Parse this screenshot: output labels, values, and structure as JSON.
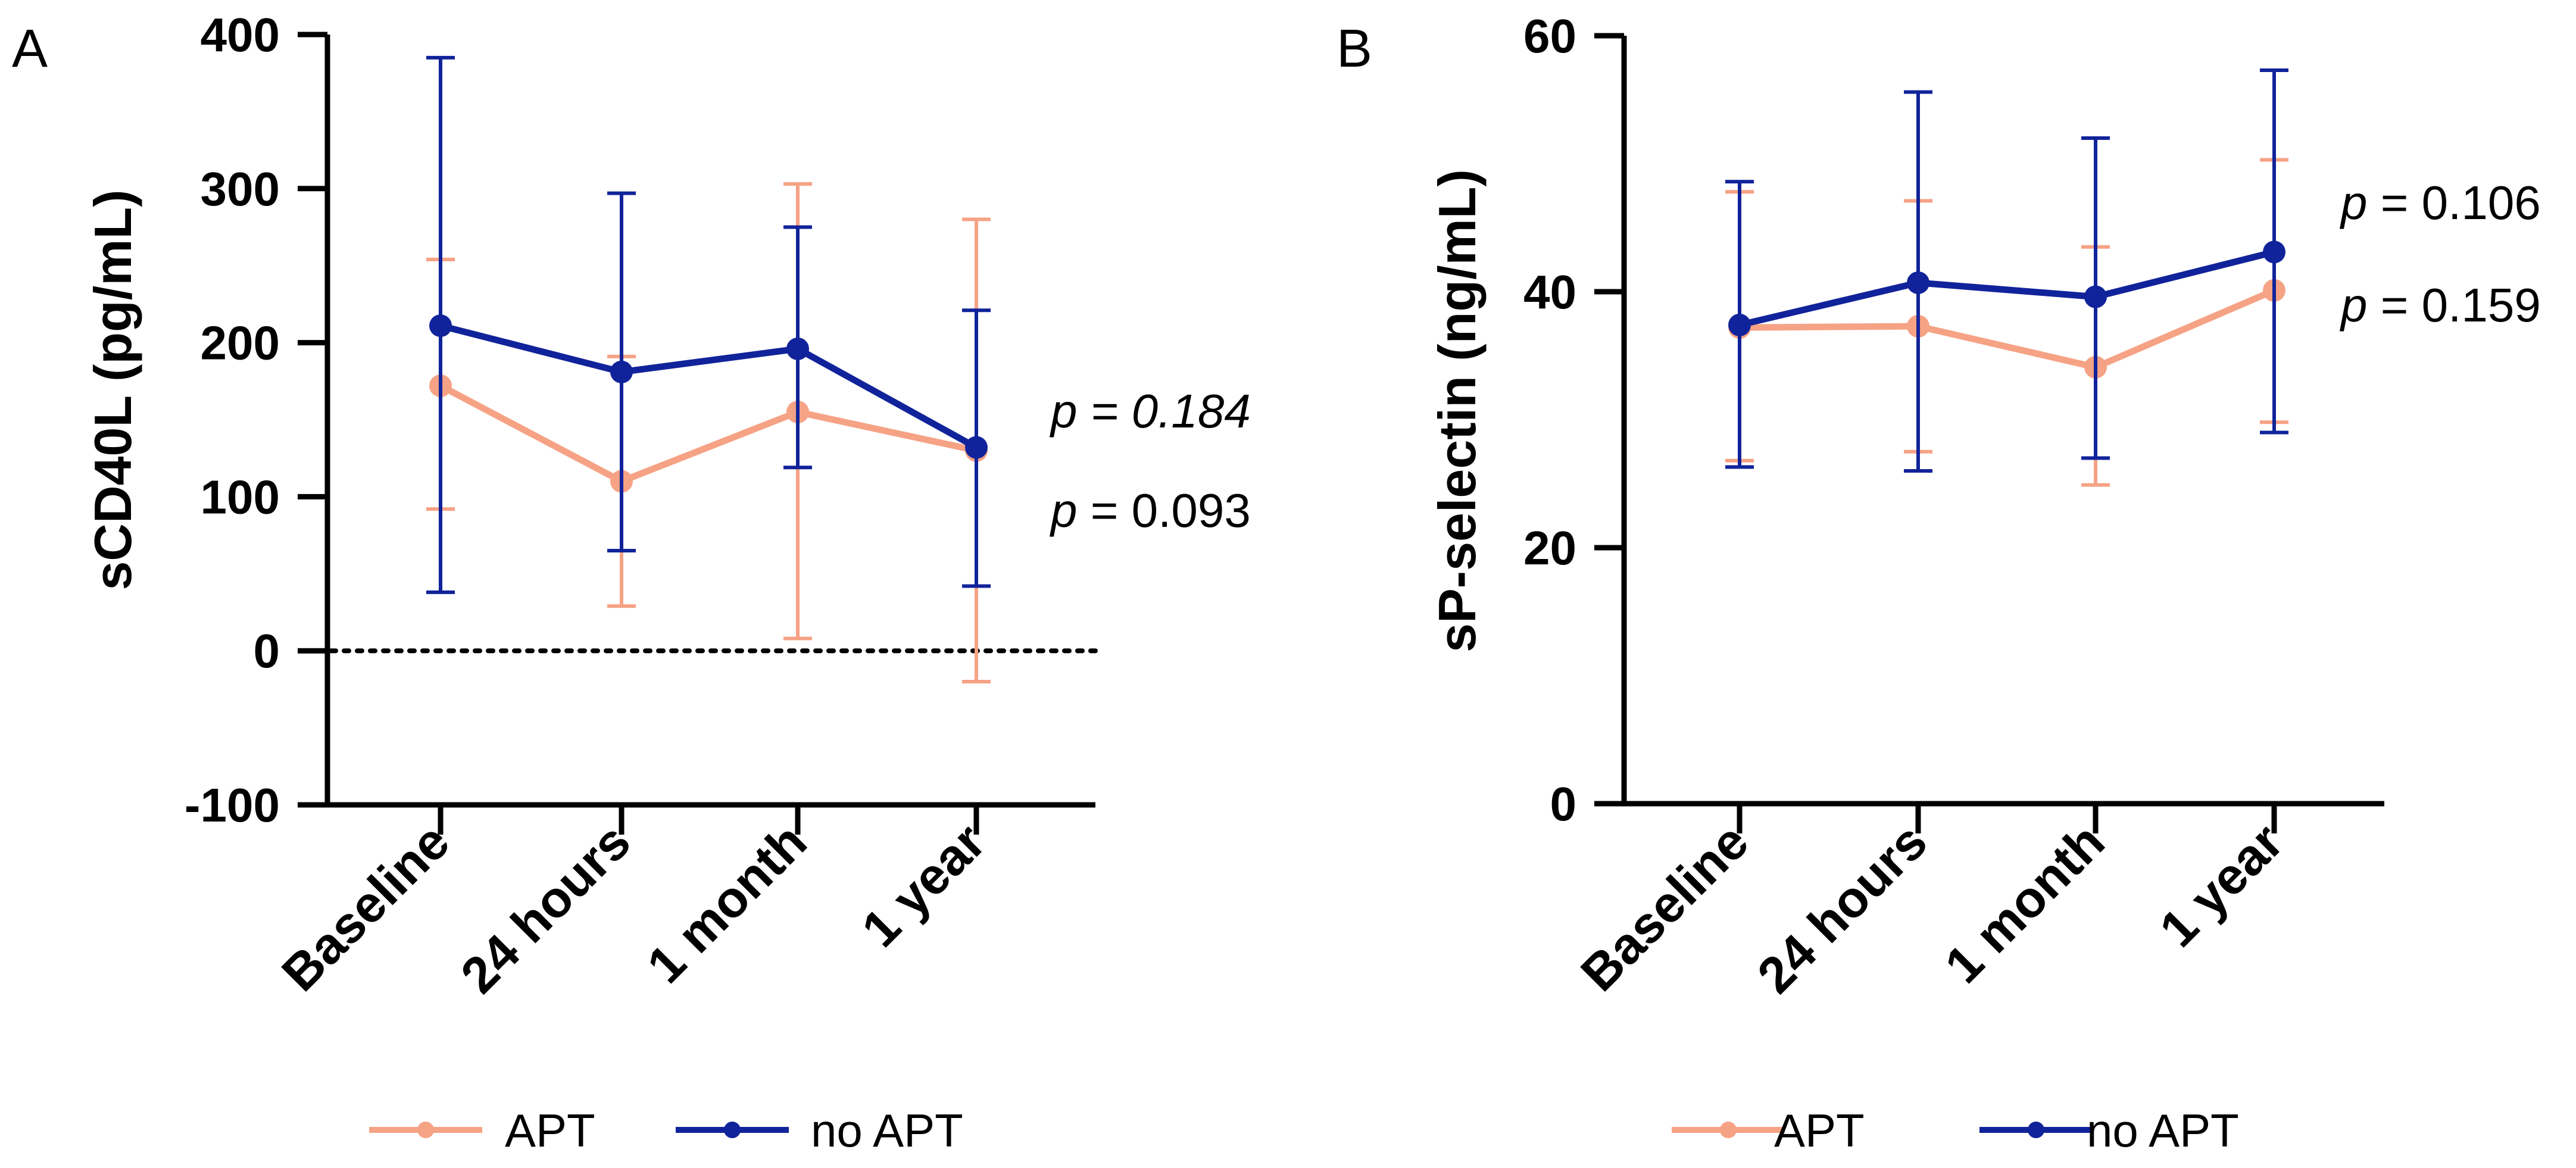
{
  "chart_data": [
    {
      "panel": "A",
      "type": "line",
      "ylabel": "sCD40L (pg/mL)",
      "xlabel": "",
      "categories": [
        "Baseline",
        "24 hours",
        "1 month",
        "1 year"
      ],
      "ylim": [
        -100,
        400
      ],
      "yticks": [
        -100,
        0,
        100,
        200,
        300,
        400
      ],
      "yticklabels": [
        "-100",
        "0",
        "100",
        "200",
        "300",
        "400"
      ],
      "reference_line": {
        "y": 0,
        "style": "dotted"
      },
      "series": [
        {
          "name": "APT",
          "color": "#F6A285",
          "values": [
            172,
            110,
            155,
            130
          ],
          "err_low": [
            92,
            29,
            8,
            -20
          ],
          "err_high": [
            254,
            191,
            303,
            280
          ]
        },
        {
          "name": "no APT",
          "color": "#11239A",
          "values": [
            211,
            181,
            196,
            132
          ],
          "err_low": [
            38,
            65,
            119,
            42
          ],
          "err_high": [
            385,
            297,
            275,
            221
          ]
        }
      ],
      "annotations": [
        {
          "prefix": "p",
          "text": " = 0.184",
          "italic": true
        },
        {
          "prefix": "p",
          "text": " = 0.093",
          "italic": false
        }
      ]
    },
    {
      "panel": "B",
      "type": "line",
      "ylabel": "sP-selectin (ng/mL)",
      "xlabel": "",
      "categories": [
        "Baseline",
        "24 hours",
        "1 month",
        "1 year"
      ],
      "ylim": [
        0,
        60
      ],
      "yticks": [
        0,
        20,
        40,
        60
      ],
      "yticklabels": [
        "0",
        "20",
        "40",
        "60"
      ],
      "series": [
        {
          "name": "APT",
          "color": "#F6A285",
          "values": [
            37.2,
            37.3,
            34.1,
            40.1
          ],
          "err_low": [
            26.8,
            27.5,
            24.9,
            29.8
          ],
          "err_high": [
            47.8,
            47.1,
            43.5,
            50.3
          ]
        },
        {
          "name": "no APT",
          "color": "#11239A",
          "values": [
            37.4,
            40.7,
            39.6,
            43.1
          ],
          "err_low": [
            26.3,
            26.0,
            27.0,
            29.0
          ],
          "err_high": [
            48.6,
            55.6,
            52.0,
            57.3
          ]
        }
      ],
      "annotations": [
        {
          "prefix": "p",
          "text": " = 0.106",
          "italic": false
        },
        {
          "prefix": "p",
          "text": " = 0.159",
          "italic": false
        }
      ]
    }
  ],
  "legend": [
    {
      "label": "APT",
      "color": "#F6A285"
    },
    {
      "label": "no APT",
      "color": "#11239A"
    }
  ]
}
